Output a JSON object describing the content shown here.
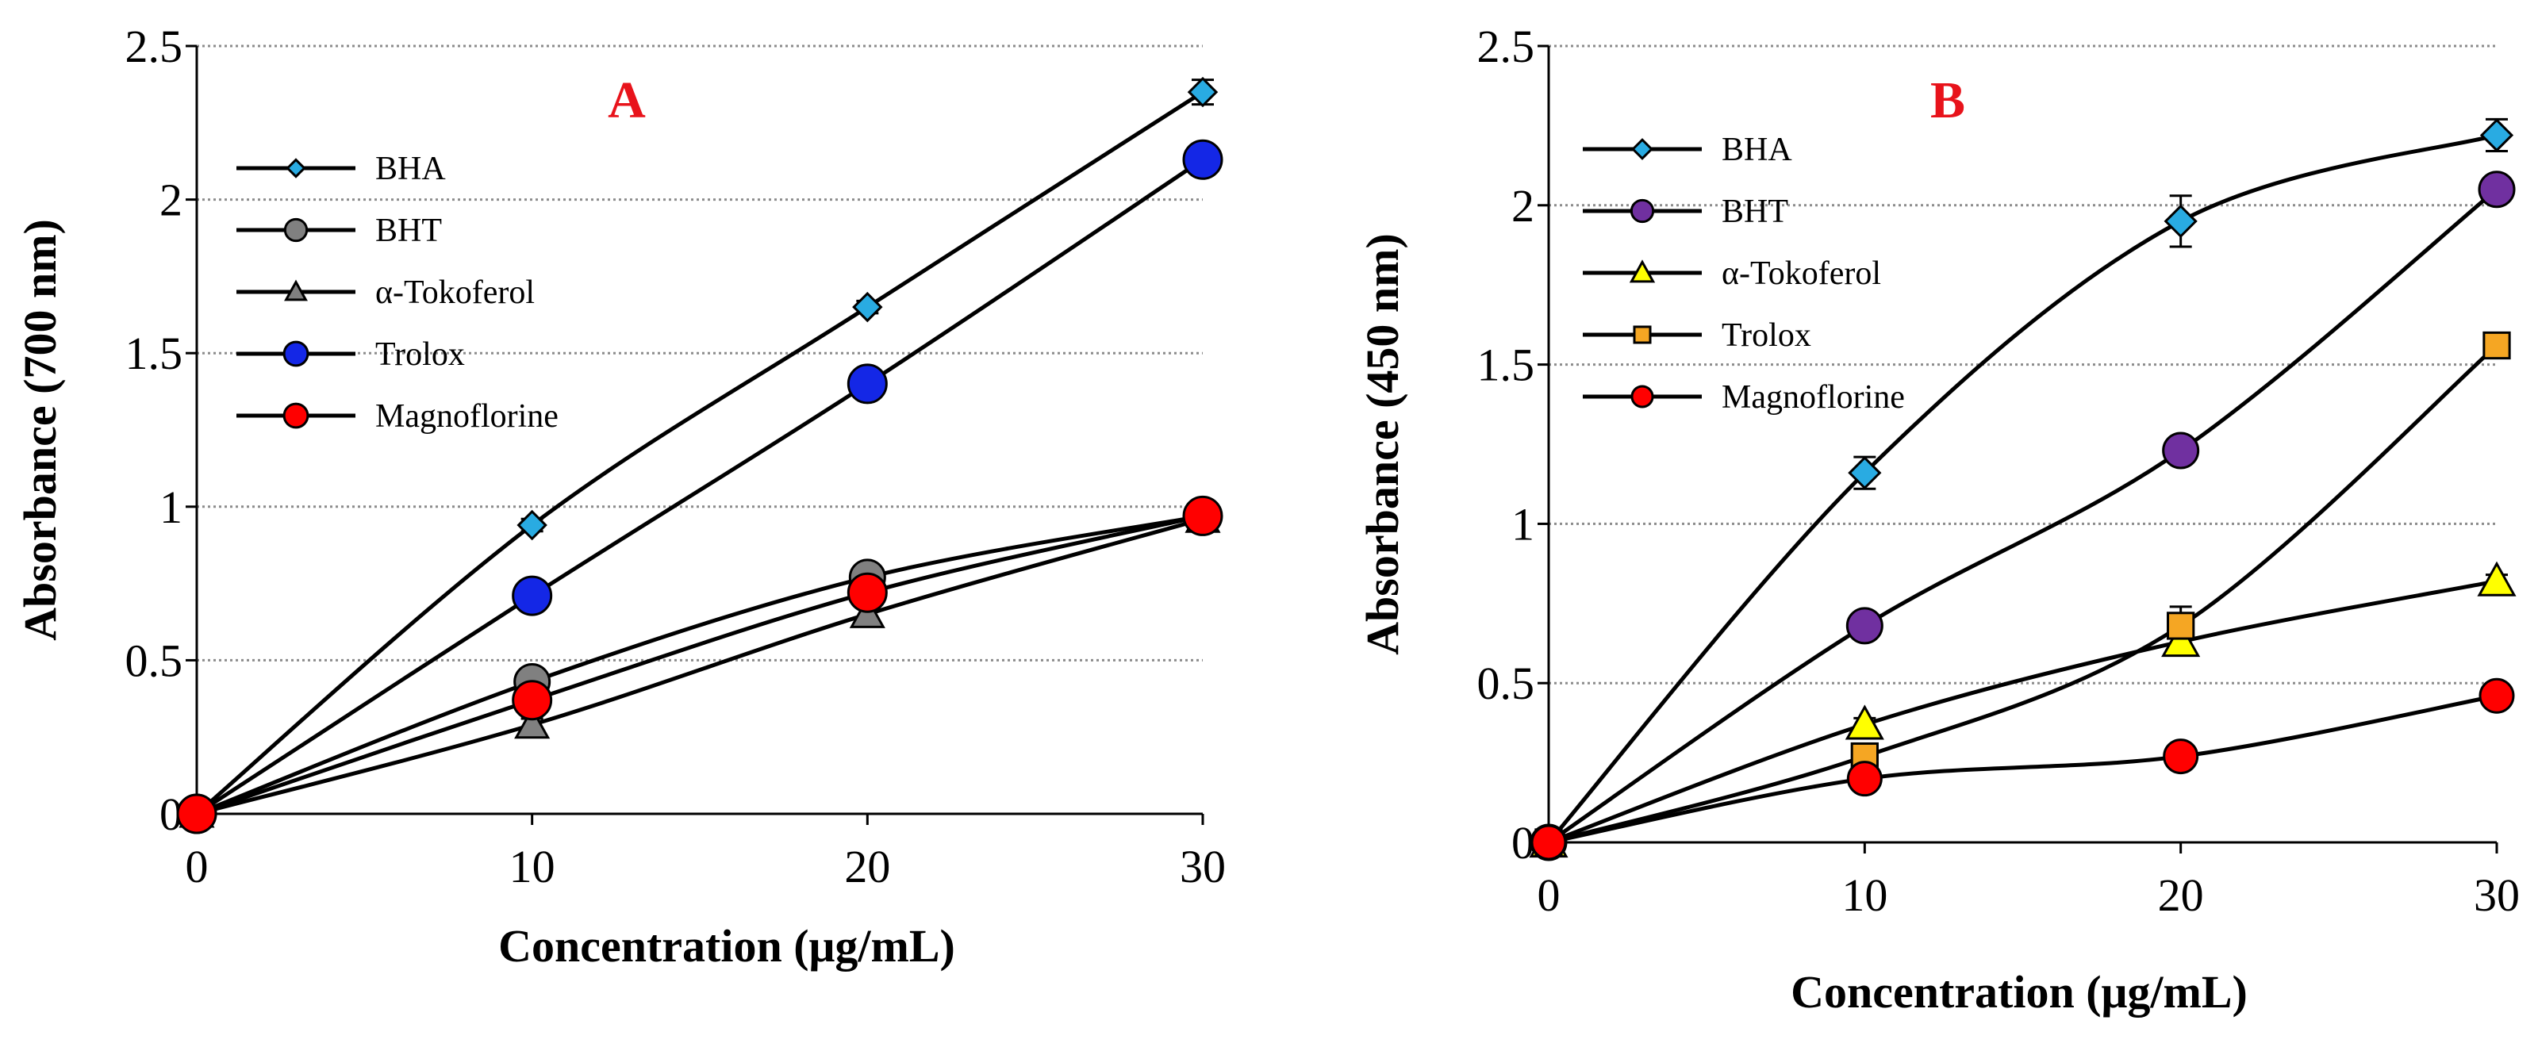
{
  "chart_data": [
    {
      "type": "line",
      "panel_label": "A",
      "xlabel": "Concentration (μg/mL)",
      "ylabel": "Absorbance (700 nm)",
      "x": [
        0,
        10,
        20,
        30
      ],
      "xlim": [
        0,
        30
      ],
      "ylim": [
        0,
        2.5
      ],
      "xticks": [
        "0",
        "10",
        "20",
        "30"
      ],
      "yticks": [
        "0",
        "0.5",
        "1",
        "1.5",
        "2",
        "2.5"
      ],
      "grid": "horizontal dotted",
      "legend_position": "top-left",
      "series": [
        {
          "name": "BHA",
          "values": [
            0,
            0.94,
            1.65,
            2.35
          ],
          "marker": "diamond",
          "color": "#29abe2",
          "errors": [
            0,
            0.02,
            0.02,
            0.04
          ]
        },
        {
          "name": "BHT",
          "values": [
            0,
            0.43,
            0.77,
            0.97
          ],
          "marker": "circle",
          "color": "#808080",
          "errors": [
            0,
            0.02,
            0.02,
            0.02
          ]
        },
        {
          "name": "α-Tokoferol",
          "values": [
            0,
            0.29,
            0.65,
            0.96
          ],
          "marker": "triangle",
          "color": "#808080",
          "errors": [
            0,
            0.02,
            0.02,
            0.02
          ]
        },
        {
          "name": "Trolox",
          "values": [
            0,
            0.71,
            1.4,
            2.13
          ],
          "marker": "circle",
          "color": "#1427e6",
          "errors": [
            0,
            0.02,
            0.03,
            0.03
          ]
        },
        {
          "name": "Magnoflorine",
          "values": [
            0,
            0.37,
            0.72,
            0.97
          ],
          "marker": "circle",
          "color": "#ff0000",
          "errors": [
            0,
            0.02,
            0.02,
            0.02
          ]
        }
      ]
    },
    {
      "type": "line",
      "panel_label": "B",
      "xlabel": "Concentration (μg/mL)",
      "ylabel": "Absorbance (450 nm)",
      "x": [
        0,
        10,
        20,
        30
      ],
      "xlim": [
        0,
        30
      ],
      "ylim": [
        0,
        2.5
      ],
      "xticks": [
        "0",
        "10",
        "20",
        "30"
      ],
      "yticks": [
        "0",
        "0.5",
        "1",
        "1.5",
        "2",
        "2.5"
      ],
      "grid": "horizontal dotted",
      "legend_position": "top-left",
      "series": [
        {
          "name": "BHA",
          "values": [
            0,
            1.16,
            1.95,
            2.22
          ],
          "marker": "diamond",
          "color": "#29abe2",
          "errors": [
            0,
            0.05,
            0.08,
            0.05
          ]
        },
        {
          "name": "BHT",
          "values": [
            0,
            0.68,
            1.23,
            2.05
          ],
          "marker": "circle",
          "color": "#7030a0",
          "errors": [
            0,
            0.02,
            0.02,
            0.03
          ]
        },
        {
          "name": "α-Tokoferol",
          "values": [
            0,
            0.37,
            0.63,
            0.82
          ],
          "marker": "triangle",
          "color": "#ffff00",
          "errors": [
            0,
            0.02,
            0.02,
            0.02
          ]
        },
        {
          "name": "Trolox",
          "values": [
            0,
            0.27,
            0.68,
            1.56
          ],
          "marker": "square",
          "color": "#f5a623",
          "errors": [
            0,
            0.03,
            0.06,
            0.03
          ]
        },
        {
          "name": "Magnoflorine",
          "values": [
            0,
            0.2,
            0.27,
            0.46
          ],
          "marker": "circle",
          "color": "#ff0000",
          "errors": [
            0,
            0.02,
            0.02,
            0.02
          ]
        }
      ]
    }
  ]
}
